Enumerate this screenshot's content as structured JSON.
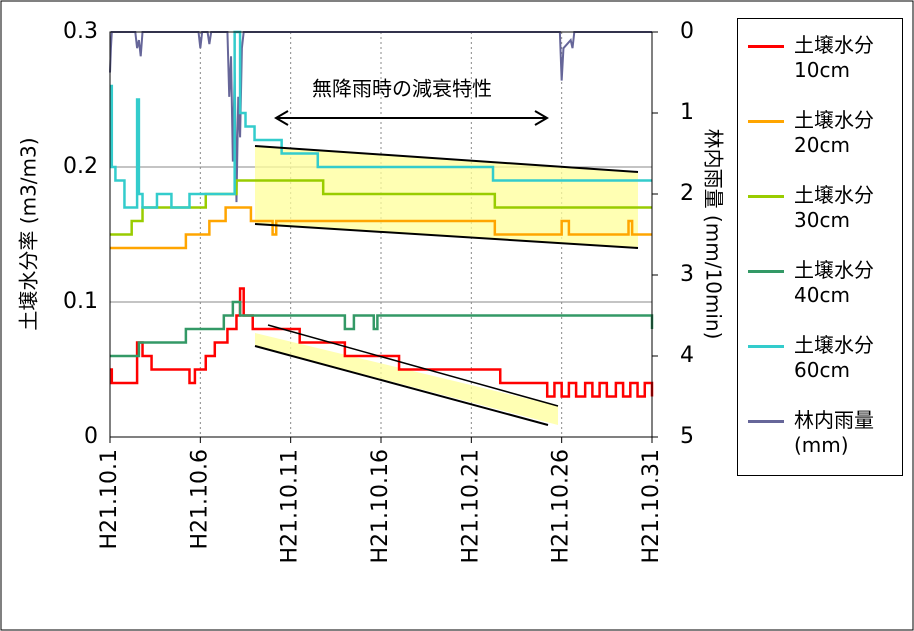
{
  "chart_data": {
    "type": "line",
    "xlabel": null,
    "ylabel": "土壌水分率 (m3/m3)",
    "y2label": "林内雨量 (mm/10min)",
    "annotation": "無降雨時の減衰特性",
    "xlim": [
      1,
      31
    ],
    "xticks": [
      {
        "value": 1,
        "label": "H21.10.1"
      },
      {
        "value": 6,
        "label": "H21.10.6"
      },
      {
        "value": 11,
        "label": "H21.10.11"
      },
      {
        "value": 16,
        "label": "H21.10.16"
      },
      {
        "value": 21,
        "label": "H21.10.21"
      },
      {
        "value": 26,
        "label": "H21.10.26"
      },
      {
        "value": 31,
        "label": "H21.10.31"
      }
    ],
    "ylim": [
      0,
      0.3
    ],
    "yticks": [
      0,
      0.1,
      0.2,
      0.3
    ],
    "y2lim": [
      0,
      5
    ],
    "y2ticks": [
      0,
      1,
      2,
      3,
      4,
      5
    ],
    "y2_inverted": true,
    "grid": true,
    "legend": "right",
    "series": [
      {
        "name": "土壌水分 10cm",
        "color": "#ff0000",
        "step": true,
        "x": [
          1,
          1.1,
          2.5,
          2.8,
          3.3,
          4.3,
          5.4,
          5.7,
          6.3,
          6.8,
          7.5,
          8.0,
          8.2,
          8.4,
          8.9,
          9.8,
          11.5,
          14.0,
          17.0,
          22.6,
          25.2,
          25.6,
          26.0,
          26.4,
          26.8,
          27.3,
          27.7,
          28.1,
          28.5,
          29.0,
          29.4,
          29.8,
          30.2,
          30.6,
          31
        ],
        "values": [
          0.05,
          0.04,
          0.07,
          0.06,
          0.05,
          0.05,
          0.04,
          0.05,
          0.06,
          0.07,
          0.08,
          0.09,
          0.11,
          0.09,
          0.08,
          0.08,
          0.07,
          0.06,
          0.05,
          0.04,
          0.03,
          0.04,
          0.03,
          0.04,
          0.03,
          0.04,
          0.03,
          0.04,
          0.03,
          0.04,
          0.03,
          0.04,
          0.03,
          0.04,
          0.03
        ]
      },
      {
        "name": "土壌水分 20cm",
        "color": "#ffa500",
        "step": true,
        "x": [
          1,
          5.2,
          6.5,
          7.4,
          8.8,
          10.0,
          10.2,
          22.3,
          26.0,
          26.4,
          29.7,
          29.9,
          31
        ],
        "values": [
          0.14,
          0.15,
          0.16,
          0.17,
          0.16,
          0.15,
          0.16,
          0.15,
          0.16,
          0.15,
          0.16,
          0.15,
          0.15
        ]
      },
      {
        "name": "土壌水分 30cm",
        "color": "#99cc00",
        "step": true,
        "x": [
          1,
          2.2,
          2.8,
          6.3,
          8.0,
          8.8,
          12.8,
          22.3,
          31
        ],
        "values": [
          0.15,
          0.16,
          0.17,
          0.18,
          0.19,
          0.19,
          0.18,
          0.17,
          0.17
        ]
      },
      {
        "name": "土壌水分 40cm",
        "color": "#339966",
        "step": true,
        "x": [
          1,
          2.6,
          5.2,
          7.3,
          7.8,
          8.2,
          14.0,
          14.5,
          15.6,
          15.8,
          31
        ],
        "values": [
          0.06,
          0.07,
          0.08,
          0.09,
          0.1,
          0.09,
          0.08,
          0.09,
          0.08,
          0.09,
          0.08
        ]
      },
      {
        "name": "土壌水分 60cm",
        "color": "#33cccc",
        "step": true,
        "x": [
          1,
          1.1,
          1.3,
          1.8,
          2.5,
          2.6,
          2.8,
          3.6,
          4.4,
          5.4,
          7.6,
          7.9,
          8.2,
          8.5,
          9.0,
          10.5,
          12.5,
          22.2,
          31
        ],
        "values": [
          0.26,
          0.2,
          0.19,
          0.17,
          0.25,
          0.18,
          0.17,
          0.18,
          0.17,
          0.18,
          0.18,
          0.3,
          0.24,
          0.23,
          0.22,
          0.21,
          0.2,
          0.19,
          0.19
        ]
      },
      {
        "name": "林内雨量 (mm)",
        "color": "#666699",
        "axis": "y2",
        "step": false,
        "x": [
          1,
          1.05,
          1.1,
          2.4,
          2.5,
          2.6,
          2.7,
          2.8,
          5.9,
          6.0,
          6.1,
          6.4,
          6.5,
          6.6,
          7.5,
          7.6,
          7.7,
          7.8,
          7.9,
          8.0,
          8.1,
          8.2,
          8.3,
          8.4,
          25.9,
          26.0,
          26.1,
          26.5,
          26.6,
          26.7,
          31
        ],
        "values": [
          0.5,
          0.2,
          0,
          0,
          0.2,
          0.1,
          0.3,
          0,
          0,
          0.2,
          0,
          0,
          0.15,
          0,
          0,
          0.8,
          0.3,
          1.6,
          0.5,
          2.1,
          0.8,
          1.3,
          0.2,
          0,
          0,
          0.6,
          0.2,
          0.1,
          0.2,
          0,
          0
        ]
      }
    ]
  }
}
